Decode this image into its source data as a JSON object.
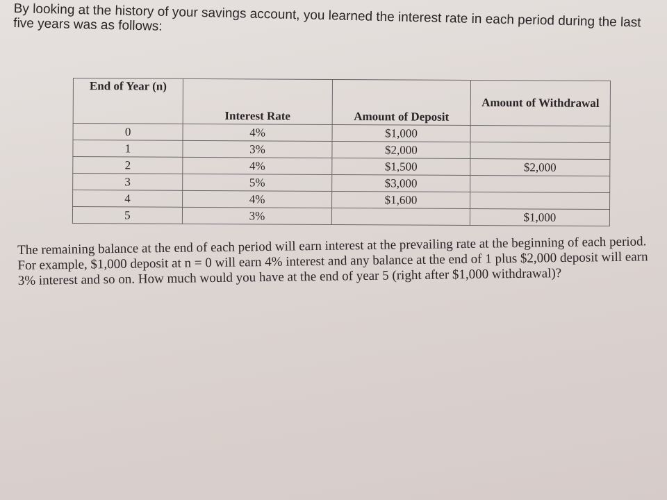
{
  "intro": "By looking at the history of your savings account, you learned the interest rate in each period during the last five years was as follows:",
  "table": {
    "headers": [
      "End of Year (n)",
      "Interest Rate",
      "Amount of Deposit",
      "Amount of Withdrawal"
    ],
    "rows": [
      [
        "0",
        "4%",
        "$1,000",
        ""
      ],
      [
        "1",
        "3%",
        "$2,000",
        ""
      ],
      [
        "2",
        "4%",
        "$1,500",
        "$2,000"
      ],
      [
        "3",
        "5%",
        "$3,000",
        ""
      ],
      [
        "4",
        "4%",
        "$1,600",
        ""
      ],
      [
        "5",
        "3%",
        "",
        "$1,000"
      ]
    ]
  },
  "question": "The remaining balance at the end of each period will earn interest at the prevailing rate at the beginning of each period. For example, $1,000 deposit at n = 0 will earn 4% interest and any balance at the end of 1 plus $2,000 deposit will earn 3% interest and so on. How much would you have at the end of year 5 (right after $1,000 withdrawal)?"
}
